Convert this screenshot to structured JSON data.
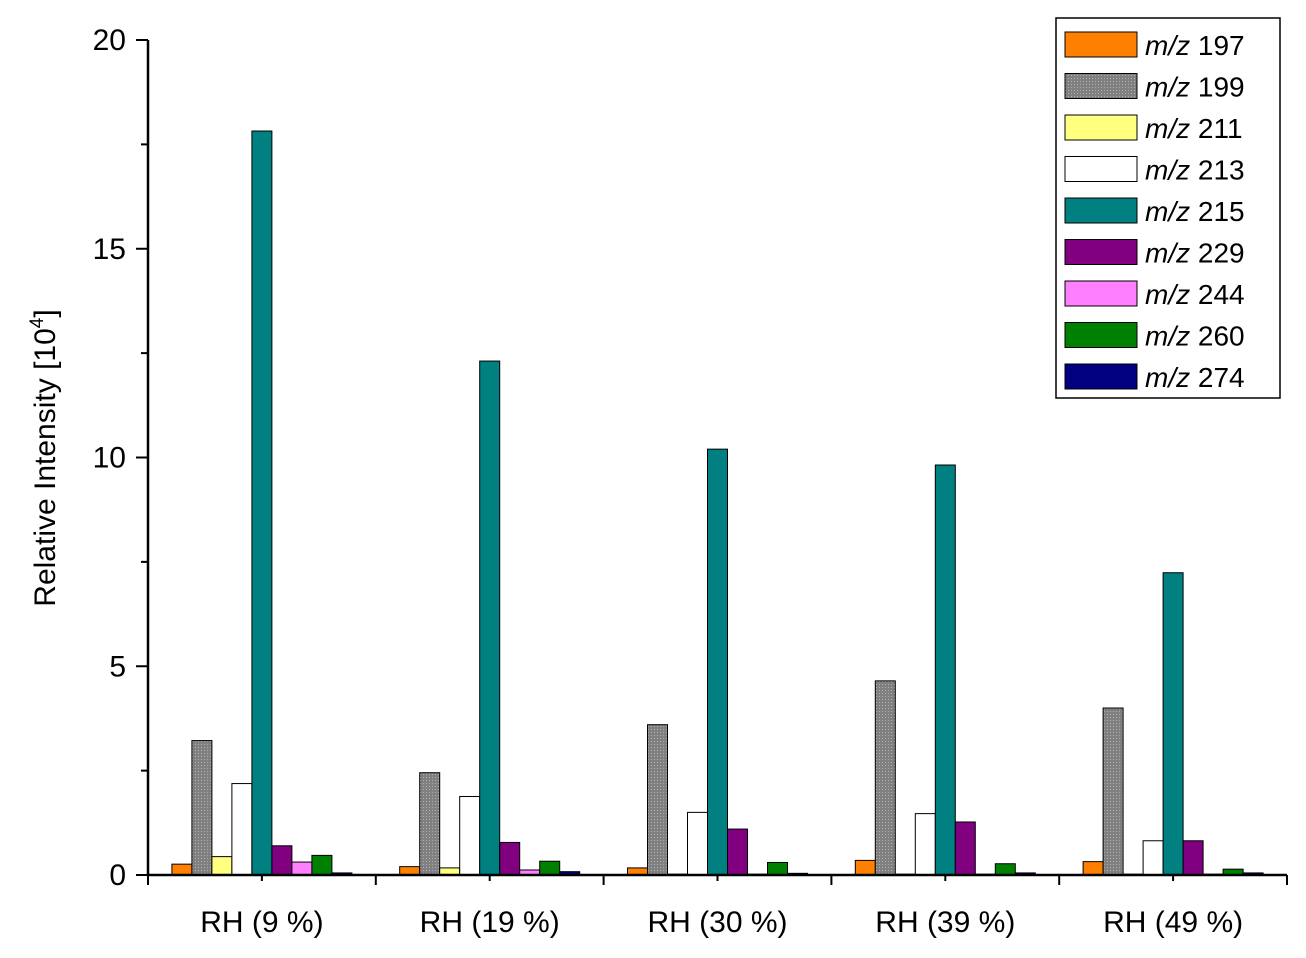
{
  "chart_data": {
    "type": "bar",
    "title": "",
    "xlabel": "",
    "ylabel": "Relative Intensity [10",
    "ylabel_superscript": "4",
    "ylabel_suffix": "]",
    "ylim": [
      0,
      20
    ],
    "yticks": [
      0,
      5,
      10,
      15,
      20
    ],
    "ytick_labels": [
      "0",
      "5",
      "10",
      "15",
      "20"
    ],
    "categories": [
      "RH (9 %)",
      "RH (19 %)",
      "RH (30 %)",
      "RH (39 %)",
      "RH (49 %)"
    ],
    "legend_position": "top-right",
    "legend_prefix": "m/z",
    "series": [
      {
        "name": "197",
        "color": "#ff8000",
        "values": [
          0.26,
          0.2,
          0.17,
          0.35,
          0.32
        ]
      },
      {
        "name": "199",
        "color": "#808080",
        "values": [
          3.22,
          2.45,
          3.6,
          4.65,
          4.0
        ],
        "pattern": "dotted"
      },
      {
        "name": "211",
        "color": "#ffff80",
        "values": [
          0.44,
          0.17,
          0.02,
          0.02,
          0.02
        ]
      },
      {
        "name": "213",
        "color": "#ffffff",
        "values": [
          2.19,
          1.88,
          1.5,
          1.47,
          0.82
        ]
      },
      {
        "name": "215",
        "color": "#008080",
        "values": [
          17.82,
          12.31,
          10.2,
          9.82,
          7.24
        ]
      },
      {
        "name": "229",
        "color": "#800080",
        "values": [
          0.7,
          0.78,
          1.1,
          1.27,
          0.82
        ]
      },
      {
        "name": "244",
        "color": "#ff80ff",
        "values": [
          0.31,
          0.12,
          0.02,
          0.02,
          0.02
        ]
      },
      {
        "name": "260",
        "color": "#008000",
        "values": [
          0.47,
          0.33,
          0.3,
          0.27,
          0.14
        ]
      },
      {
        "name": "274",
        "color": "#000080",
        "values": [
          0.05,
          0.08,
          0.04,
          0.05,
          0.05
        ]
      }
    ]
  }
}
